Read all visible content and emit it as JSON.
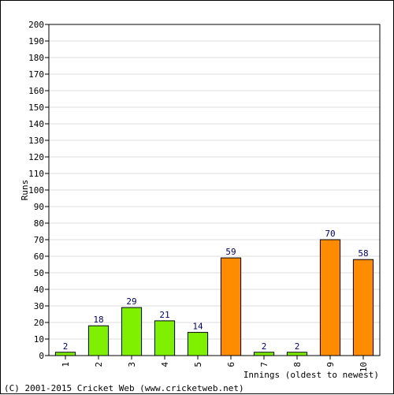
{
  "chart_data": {
    "type": "bar",
    "title": "",
    "xlabel": "Innings (oldest to newest)",
    "ylabel": "Runs",
    "ylim": [
      0,
      200
    ],
    "ytick_step": 10,
    "grid": true,
    "categories": [
      "1",
      "2",
      "3",
      "4",
      "5",
      "6",
      "7",
      "8",
      "9",
      "10"
    ],
    "values": [
      2,
      18,
      29,
      21,
      14,
      59,
      2,
      2,
      70,
      58
    ],
    "bar_colors": [
      "#7ff000",
      "#7ff000",
      "#7ff000",
      "#7ff000",
      "#7ff000",
      "#ff8c00",
      "#7ff000",
      "#7ff000",
      "#ff8c00",
      "#ff8c00"
    ],
    "value_label_color": "#000066"
  },
  "footer": {
    "copyright": "(C) 2001-2015 Cricket Web (www.cricketweb.net)"
  }
}
